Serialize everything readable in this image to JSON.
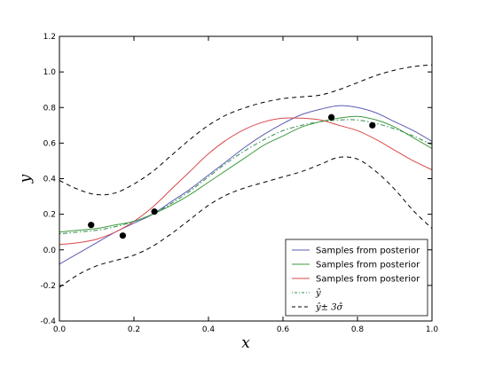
{
  "chart_data": {
    "type": "line",
    "xlabel": "x",
    "ylabel": "y",
    "xlim": [
      0.0,
      1.0
    ],
    "ylim": [
      -0.4,
      1.2
    ],
    "x_ticks": [
      "0.0",
      "0.2",
      "0.4",
      "0.6",
      "0.8",
      "1.0"
    ],
    "y_ticks": [
      "-0.4",
      "-0.2",
      "0.0",
      "0.2",
      "0.4",
      "0.6",
      "0.8",
      "1.0",
      "1.2"
    ],
    "grid": false,
    "legend_position": "lower-right",
    "x": [
      0.0,
      0.05,
      0.1,
      0.15,
      0.2,
      0.25,
      0.3,
      0.35,
      0.4,
      0.45,
      0.5,
      0.55,
      0.6,
      0.65,
      0.7,
      0.75,
      0.8,
      0.85,
      0.9,
      0.95,
      1.0
    ],
    "series": [
      {
        "name": "Samples from posterior",
        "color": "#5b5bb5",
        "style": "solid",
        "values": [
          -0.08,
          -0.02,
          0.04,
          0.1,
          0.15,
          0.2,
          0.27,
          0.34,
          0.42,
          0.5,
          0.58,
          0.65,
          0.71,
          0.76,
          0.79,
          0.81,
          0.8,
          0.77,
          0.72,
          0.67,
          0.61
        ]
      },
      {
        "name": "Samples from posterior",
        "color": "#3f9a3f",
        "style": "solid",
        "values": [
          0.1,
          0.11,
          0.12,
          0.14,
          0.16,
          0.2,
          0.25,
          0.31,
          0.38,
          0.45,
          0.52,
          0.59,
          0.64,
          0.69,
          0.72,
          0.74,
          0.75,
          0.73,
          0.69,
          0.63,
          0.57
        ]
      },
      {
        "name": "Samples from posterior",
        "color": "#d94a4a",
        "style": "solid",
        "values": [
          0.03,
          0.04,
          0.06,
          0.1,
          0.16,
          0.24,
          0.34,
          0.44,
          0.54,
          0.62,
          0.68,
          0.72,
          0.74,
          0.74,
          0.73,
          0.7,
          0.67,
          0.62,
          0.56,
          0.5,
          0.45
        ]
      },
      {
        "name": "ŷ",
        "color": "#2f8a4a",
        "style": "dashdot",
        "values": [
          0.09,
          0.1,
          0.11,
          0.13,
          0.16,
          0.2,
          0.26,
          0.33,
          0.41,
          0.49,
          0.56,
          0.62,
          0.67,
          0.7,
          0.72,
          0.73,
          0.73,
          0.71,
          0.68,
          0.64,
          0.59
        ]
      },
      {
        "name": "ŷ± 3σ̂",
        "color": "#000000",
        "style": "dashed",
        "values": [
          0.39,
          0.34,
          0.31,
          0.32,
          0.37,
          0.44,
          0.53,
          0.62,
          0.7,
          0.76,
          0.8,
          0.83,
          0.85,
          0.86,
          0.87,
          0.9,
          0.94,
          0.98,
          1.01,
          1.03,
          1.04
        ]
      },
      {
        "name": "",
        "color": "#000000",
        "style": "dashed",
        "values": [
          -0.21,
          -0.14,
          -0.09,
          -0.06,
          -0.03,
          0.02,
          0.09,
          0.17,
          0.25,
          0.31,
          0.35,
          0.38,
          0.41,
          0.44,
          0.48,
          0.52,
          0.51,
          0.44,
          0.34,
          0.22,
          0.12
        ]
      }
    ],
    "observations": [
      {
        "x": 0.085,
        "y": 0.14
      },
      {
        "x": 0.17,
        "y": 0.08
      },
      {
        "x": 0.255,
        "y": 0.215
      },
      {
        "x": 0.73,
        "y": 0.745
      },
      {
        "x": 0.84,
        "y": 0.7
      }
    ],
    "legend": [
      {
        "label": "Samples from posterior",
        "color": "#5b5bb5",
        "style": "solid"
      },
      {
        "label": "Samples from posterior",
        "color": "#3f9a3f",
        "style": "solid"
      },
      {
        "label": "Samples from posterior",
        "color": "#d94a4a",
        "style": "solid"
      },
      {
        "label": "ŷ",
        "color": "#2f8a4a",
        "style": "dashdot"
      },
      {
        "label": "ŷ± 3σ̂",
        "color": "#000000",
        "style": "dashed"
      }
    ]
  }
}
